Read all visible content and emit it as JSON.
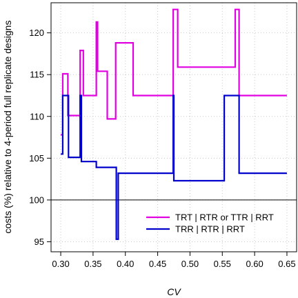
{
  "chart_data": {
    "type": "line",
    "xlabel": "CV",
    "ylabel": "costs (%) relative to 4-period full replicate designs",
    "xlim": [
      0.285,
      0.665
    ],
    "ylim": [
      93.8,
      123.6
    ],
    "xticks": [
      0.3,
      0.35,
      0.4,
      0.45,
      0.5,
      0.55,
      0.6,
      0.65
    ],
    "xtick_labels": [
      "0.30",
      "0.35",
      "0.40",
      "0.45",
      "0.50",
      "0.55",
      "0.60",
      "0.65"
    ],
    "yticks": [
      95,
      100,
      105,
      110,
      115,
      120
    ],
    "ytick_labels": [
      "95",
      "100",
      "105",
      "110",
      "115",
      "120"
    ],
    "grid": true,
    "reference_line": 100,
    "legend": {
      "position": "bottom-right"
    },
    "series": [
      {
        "name": "TRT | RTR or TTR | RRT",
        "color": "#e000e0",
        "step": true,
        "points": [
          [
            0.3,
            107.8
          ],
          [
            0.303,
            107.8
          ],
          [
            0.303,
            115.1
          ],
          [
            0.311,
            115.1
          ],
          [
            0.311,
            110.1
          ],
          [
            0.32,
            110.1
          ],
          [
            0.32,
            110.1
          ],
          [
            0.33,
            110.1
          ],
          [
            0.33,
            117.9
          ],
          [
            0.335,
            117.9
          ],
          [
            0.335,
            112.5
          ],
          [
            0.355,
            112.5
          ],
          [
            0.355,
            121.3
          ],
          [
            0.357,
            121.3
          ],
          [
            0.357,
            115.4
          ],
          [
            0.372,
            115.4
          ],
          [
            0.372,
            109.7
          ],
          [
            0.385,
            109.7
          ],
          [
            0.385,
            118.8
          ],
          [
            0.412,
            118.8
          ],
          [
            0.412,
            112.5
          ],
          [
            0.474,
            112.5
          ],
          [
            0.474,
            122.8
          ],
          [
            0.481,
            122.8
          ],
          [
            0.481,
            115.9
          ],
          [
            0.57,
            115.9
          ],
          [
            0.57,
            122.8
          ],
          [
            0.576,
            122.8
          ],
          [
            0.576,
            112.5
          ],
          [
            0.65,
            112.5
          ]
        ]
      },
      {
        "name": "TRR | RTR | RRT",
        "color": "#0000cc",
        "step": true,
        "points": [
          [
            0.3,
            105.5
          ],
          [
            0.303,
            105.5
          ],
          [
            0.303,
            112.5
          ],
          [
            0.312,
            112.5
          ],
          [
            0.312,
            105.1
          ],
          [
            0.33,
            105.1
          ],
          [
            0.33,
            112.5
          ],
          [
            0.332,
            112.5
          ],
          [
            0.332,
            104.6
          ],
          [
            0.355,
            104.6
          ],
          [
            0.355,
            103.9
          ],
          [
            0.386,
            103.9
          ],
          [
            0.386,
            95.3
          ],
          [
            0.389,
            95.3
          ],
          [
            0.389,
            103.2
          ],
          [
            0.474,
            103.2
          ],
          [
            0.474,
            112.5
          ],
          [
            0.475,
            112.5
          ],
          [
            0.475,
            102.3
          ],
          [
            0.553,
            102.3
          ],
          [
            0.553,
            112.5
          ],
          [
            0.576,
            112.5
          ],
          [
            0.576,
            103.2
          ],
          [
            0.65,
            103.2
          ]
        ]
      }
    ]
  }
}
